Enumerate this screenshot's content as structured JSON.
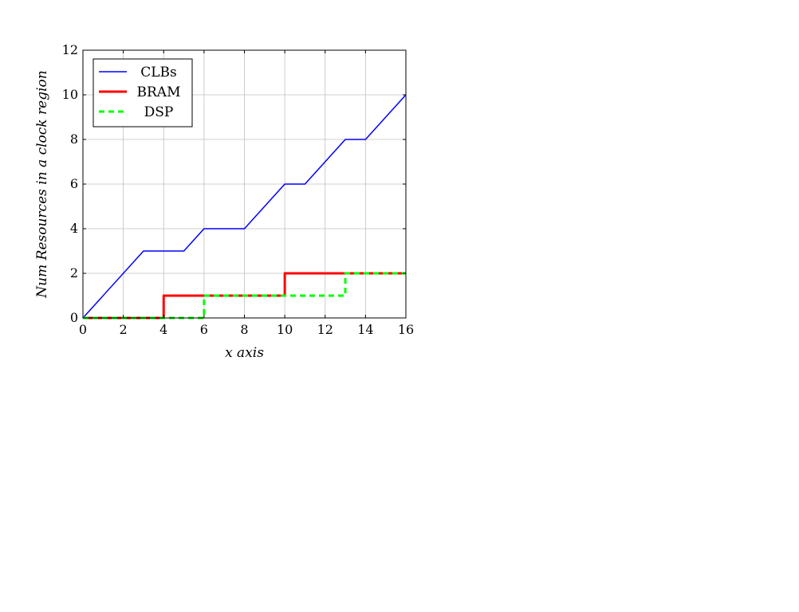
{
  "chart_data": {
    "type": "line",
    "xlabel": "x axis",
    "ylabel": "Num Resources in a clock region",
    "xlim": [
      0,
      16
    ],
    "ylim": [
      0,
      12
    ],
    "xticks": [
      0,
      2,
      4,
      6,
      8,
      10,
      12,
      14,
      16
    ],
    "yticks": [
      0,
      2,
      4,
      6,
      8,
      10,
      12
    ],
    "grid": true,
    "legend_position": "top-left",
    "series": [
      {
        "name": "CLBs",
        "color": "#0000ff",
        "style": "solid",
        "x": [
          0,
          3,
          5,
          6,
          8,
          10,
          11,
          13,
          14,
          16
        ],
        "y": [
          0,
          3,
          3,
          4,
          4,
          6,
          6,
          8,
          8,
          10
        ]
      },
      {
        "name": "BRAM",
        "color": "#ff0000",
        "style": "solid-thick",
        "x": [
          0,
          4,
          4,
          10,
          10,
          16
        ],
        "y": [
          0,
          0,
          1,
          1,
          2,
          2
        ]
      },
      {
        "name": "DSP",
        "color": "#00ff00",
        "style": "dashed",
        "x": [
          0,
          6,
          6,
          13,
          13,
          16
        ],
        "y": [
          0,
          0,
          1,
          1,
          2,
          2
        ]
      }
    ]
  }
}
